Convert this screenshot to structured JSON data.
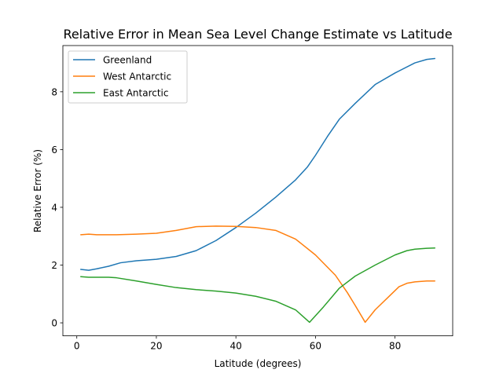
{
  "chart_data": {
    "type": "line",
    "title": "Relative Error in Mean Sea Level Change Estimate vs Latitude",
    "xlabel": "Latitude (degrees)",
    "ylabel": "Relative Error (%)",
    "xlim": [
      -3.5,
      94.5
    ],
    "ylim": [
      -0.45,
      9.6
    ],
    "xticks": [
      0,
      20,
      40,
      60,
      80
    ],
    "yticks": [
      0,
      2,
      4,
      6,
      8
    ],
    "grid": false,
    "legend_position": "upper-left",
    "series": [
      {
        "name": "Greenland",
        "color": "#1f77b4",
        "x": [
          1,
          3,
          5,
          8,
          11,
          15,
          20,
          25,
          30,
          35,
          40,
          45,
          50,
          55,
          58,
          60,
          63,
          66,
          70,
          75,
          80,
          85,
          88,
          90
        ],
        "y": [
          1.85,
          1.82,
          1.87,
          1.96,
          2.08,
          2.15,
          2.2,
          2.3,
          2.5,
          2.85,
          3.3,
          3.8,
          4.35,
          4.95,
          5.4,
          5.8,
          6.45,
          7.05,
          7.6,
          8.25,
          8.65,
          9.0,
          9.12,
          9.15
        ]
      },
      {
        "name": "West Antarctic",
        "color": "#ff7f0e",
        "x": [
          1,
          3,
          5,
          10,
          15,
          20,
          25,
          30,
          35,
          40,
          45,
          50,
          55,
          60,
          65,
          68,
          70,
          72.5,
          75,
          78,
          81,
          83,
          85,
          88,
          90
        ],
        "y": [
          3.05,
          3.07,
          3.05,
          3.05,
          3.07,
          3.1,
          3.2,
          3.33,
          3.35,
          3.34,
          3.3,
          3.2,
          2.9,
          2.35,
          1.65,
          1.05,
          0.6,
          0.02,
          0.45,
          0.85,
          1.25,
          1.37,
          1.42,
          1.45,
          1.45
        ]
      },
      {
        "name": "East Antarctic",
        "color": "#2ca02c",
        "x": [
          1,
          3,
          5,
          8,
          10,
          15,
          20,
          25,
          30,
          35,
          40,
          45,
          50,
          55,
          58.5,
          62,
          66,
          70,
          75,
          80,
          83,
          85,
          88,
          90
        ],
        "y": [
          1.6,
          1.58,
          1.58,
          1.58,
          1.56,
          1.45,
          1.33,
          1.22,
          1.15,
          1.1,
          1.03,
          0.92,
          0.75,
          0.45,
          0.02,
          0.55,
          1.2,
          1.62,
          2.0,
          2.35,
          2.5,
          2.55,
          2.58,
          2.59
        ]
      }
    ]
  }
}
